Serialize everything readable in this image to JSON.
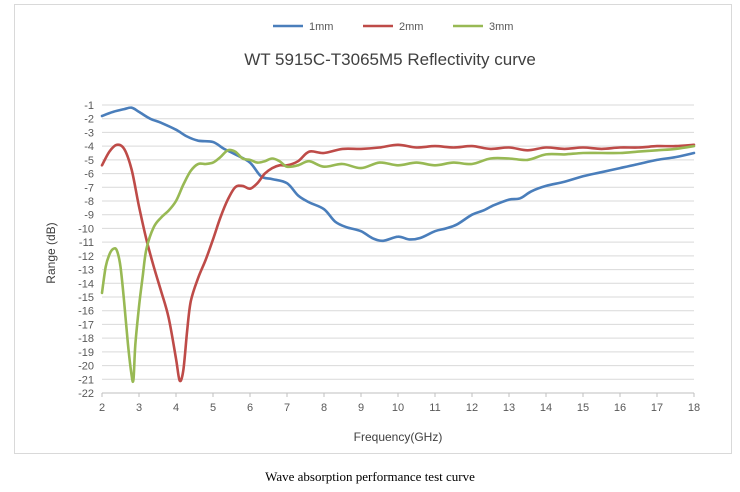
{
  "caption": "Wave absorption performance test curve",
  "chart_data": {
    "type": "line",
    "title": "WT 5915C-T3065M5 Reflectivity curve",
    "xlabel": "Frequency(GHz)",
    "ylabel": "Range (dB)",
    "xlim": [
      2,
      18
    ],
    "ylim": [
      -22,
      -1
    ],
    "xticks": [
      2,
      3,
      4,
      5,
      6,
      7,
      8,
      9,
      10,
      11,
      12,
      13,
      14,
      15,
      16,
      17,
      18
    ],
    "yticks": [
      -1,
      -2,
      -3,
      -4,
      -5,
      -6,
      -7,
      -8,
      -9,
      -10,
      -11,
      -12,
      -13,
      -14,
      -15,
      -16,
      -17,
      -18,
      -19,
      -20,
      -21,
      -22
    ],
    "grid": "horizontal",
    "legend_position": "top",
    "series": [
      {
        "name": "1mm",
        "color": "#4a7ebb",
        "x": [
          2,
          2.3,
          2.6,
          2.8,
          3,
          3.3,
          3.6,
          4,
          4.3,
          4.6,
          5,
          5.3,
          5.6,
          6,
          6.3,
          6.6,
          7,
          7.3,
          7.6,
          8,
          8.3,
          8.6,
          9,
          9.3,
          9.6,
          10,
          10.3,
          10.6,
          11,
          11.3,
          11.6,
          12,
          12.3,
          12.6,
          13,
          13.3,
          13.6,
          14,
          14.5,
          15,
          15.5,
          16,
          16.5,
          17,
          17.5,
          18
        ],
        "values": [
          -1.8,
          -1.5,
          -1.3,
          -1.2,
          -1.5,
          -2.0,
          -2.3,
          -2.8,
          -3.3,
          -3.6,
          -3.7,
          -4.2,
          -4.6,
          -5.2,
          -6.2,
          -6.4,
          -6.7,
          -7.6,
          -8.1,
          -8.6,
          -9.5,
          -9.9,
          -10.2,
          -10.7,
          -10.9,
          -10.6,
          -10.8,
          -10.7,
          -10.2,
          -10.0,
          -9.7,
          -9.0,
          -8.7,
          -8.3,
          -7.9,
          -7.8,
          -7.3,
          -6.9,
          -6.6,
          -6.2,
          -5.9,
          -5.6,
          -5.3,
          -5.0,
          -4.8,
          -4.5
        ]
      },
      {
        "name": "2mm",
        "color": "#be4b48",
        "x": [
          2,
          2.2,
          2.4,
          2.6,
          2.8,
          3,
          3.2,
          3.4,
          3.6,
          3.8,
          4,
          4.1,
          4.2,
          4.3,
          4.4,
          4.6,
          4.8,
          5,
          5.2,
          5.4,
          5.6,
          5.8,
          6,
          6.2,
          6.4,
          6.6,
          6.8,
          7,
          7.3,
          7.6,
          8,
          8.5,
          9,
          9.5,
          10,
          10.5,
          11,
          11.5,
          12,
          12.5,
          13,
          13.5,
          14,
          14.5,
          15,
          15.5,
          16,
          16.5,
          17,
          17.5,
          18
        ],
        "values": [
          -5.4,
          -4.4,
          -3.9,
          -4.2,
          -5.7,
          -8.4,
          -10.8,
          -12.8,
          -14.6,
          -16.5,
          -19.5,
          -21.1,
          -20.3,
          -17.5,
          -15.3,
          -13.6,
          -12.3,
          -10.8,
          -9.2,
          -7.9,
          -7.0,
          -6.9,
          -7.1,
          -6.7,
          -6.0,
          -5.6,
          -5.4,
          -5.4,
          -5.1,
          -4.4,
          -4.5,
          -4.2,
          -4.2,
          -4.1,
          -3.9,
          -4.1,
          -4.0,
          -4.1,
          -4.0,
          -4.2,
          -4.1,
          -4.3,
          -4.1,
          -4.2,
          -4.1,
          -4.2,
          -4.1,
          -4.1,
          -4.0,
          -4.0,
          -3.9
        ]
      },
      {
        "name": "3mm",
        "color": "#98b954",
        "x": [
          2,
          2.1,
          2.2,
          2.3,
          2.4,
          2.5,
          2.6,
          2.7,
          2.8,
          2.85,
          2.9,
          3,
          3.1,
          3.2,
          3.4,
          3.6,
          3.8,
          4,
          4.2,
          4.4,
          4.6,
          4.8,
          5,
          5.2,
          5.4,
          5.6,
          5.8,
          6,
          6.2,
          6.4,
          6.6,
          6.8,
          7,
          7.3,
          7.6,
          8,
          8.5,
          9,
          9.5,
          10,
          10.5,
          11,
          11.5,
          12,
          12.5,
          13,
          13.5,
          14,
          14.5,
          15,
          15.5,
          16,
          16.5,
          17,
          17.5,
          18
        ],
        "values": [
          -14.7,
          -12.8,
          -11.9,
          -11.5,
          -11.6,
          -12.8,
          -15.4,
          -18.4,
          -20.7,
          -21.0,
          -18.5,
          -15.7,
          -13.5,
          -11.5,
          -9.9,
          -9.2,
          -8.7,
          -8.0,
          -6.8,
          -5.8,
          -5.3,
          -5.3,
          -5.2,
          -4.8,
          -4.3,
          -4.4,
          -4.9,
          -5.0,
          -5.2,
          -5.1,
          -4.9,
          -5.1,
          -5.5,
          -5.4,
          -5.1,
          -5.5,
          -5.3,
          -5.6,
          -5.2,
          -5.4,
          -5.2,
          -5.4,
          -5.2,
          -5.3,
          -4.9,
          -4.9,
          -5.0,
          -4.6,
          -4.6,
          -4.5,
          -4.5,
          -4.5,
          -4.4,
          -4.3,
          -4.2,
          -4.0
        ]
      }
    ]
  }
}
